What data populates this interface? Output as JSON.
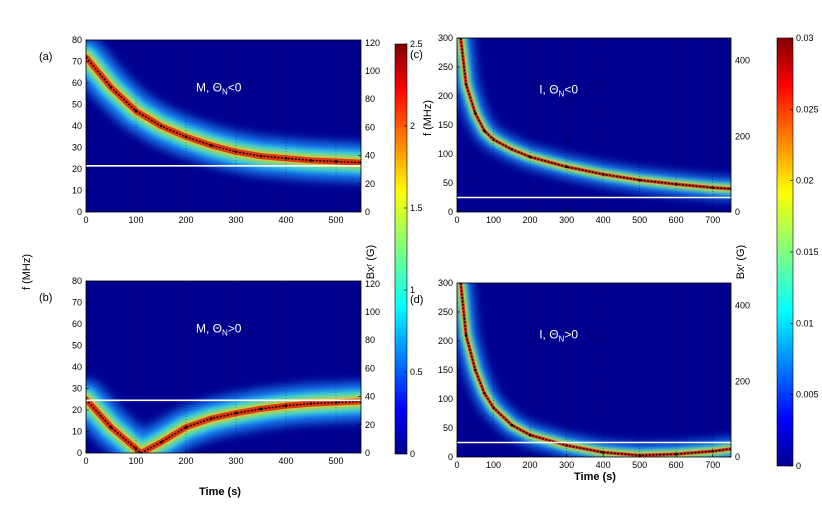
{
  "chart_data": [
    {
      "type": "heatmap",
      "panel_label": "(a)",
      "annotation": "M, ΘN<0",
      "x": [
        0,
        50,
        100,
        150,
        200,
        250,
        300,
        350,
        400,
        450,
        500,
        550
      ],
      "ridge_f": [
        72,
        58,
        47,
        40,
        35,
        31,
        28,
        26,
        25,
        24,
        23.5,
        23
      ],
      "xlim": [
        0,
        550
      ],
      "ylim": [
        0,
        80
      ],
      "right_ylim": [
        0,
        122
      ],
      "xticks": [
        0,
        100,
        200,
        300,
        400,
        500
      ],
      "yticks": [
        0,
        10,
        20,
        30,
        40,
        50,
        60,
        70,
        80
      ],
      "right_yticks": [
        0,
        20,
        40,
        60,
        80,
        100,
        120
      ],
      "ref_line_f": 21.5,
      "colorbar": {
        "min": 0,
        "max": 2.5,
        "ticks": [
          0,
          0.5,
          1,
          1.5,
          2,
          2.5
        ]
      }
    },
    {
      "type": "heatmap",
      "panel_label": "(b)",
      "annotation": "M, ΘN>0",
      "x": [
        0,
        50,
        100,
        110,
        150,
        200,
        250,
        300,
        350,
        400,
        450,
        500,
        550
      ],
      "ridge_f": [
        25,
        12,
        2,
        0,
        5,
        12,
        16,
        18.5,
        20.5,
        22,
        23,
        23.5,
        24
      ],
      "xlim": [
        0,
        550
      ],
      "ylim": [
        0,
        80
      ],
      "right_ylim": [
        0,
        122
      ],
      "xticks": [
        0,
        100,
        200,
        300,
        400,
        500
      ],
      "yticks": [
        0,
        10,
        20,
        30,
        40,
        50,
        60,
        70,
        80
      ],
      "right_yticks": [
        0,
        20,
        40,
        60,
        80,
        100,
        120
      ],
      "ref_line_f": 24.5,
      "colorbar": {
        "min": 0,
        "max": 2.5,
        "ticks": [
          0,
          0.5,
          1,
          1.5,
          2,
          2.5
        ]
      }
    },
    {
      "type": "heatmap",
      "panel_label": "(c)",
      "annotation": "I, ΘN<0",
      "x": [
        10,
        25,
        50,
        75,
        100,
        150,
        200,
        300,
        400,
        500,
        600,
        700,
        750
      ],
      "ridge_f": [
        300,
        220,
        170,
        140,
        125,
        108,
        95,
        78,
        65,
        55,
        48,
        42,
        40
      ],
      "xlim": [
        0,
        750
      ],
      "ylim": [
        0,
        300
      ],
      "right_ylim": [
        0,
        460
      ],
      "xticks": [
        0,
        100,
        200,
        300,
        400,
        500,
        600,
        700
      ],
      "yticks": [
        0,
        50,
        100,
        150,
        200,
        250,
        300
      ],
      "right_yticks": [
        0,
        200,
        400
      ],
      "ref_line_f": 25,
      "colorbar": {
        "min": 0,
        "max": 0.03,
        "ticks": [
          0,
          0.005,
          0.01,
          0.015,
          0.02,
          0.025,
          0.03
        ]
      }
    },
    {
      "type": "heatmap",
      "panel_label": "(d)",
      "annotation": "I, ΘN>0",
      "x": [
        10,
        25,
        50,
        75,
        100,
        150,
        200,
        300,
        400,
        500,
        600,
        700,
        750
      ],
      "ridge_f": [
        300,
        210,
        150,
        110,
        85,
        55,
        38,
        20,
        8,
        3,
        5,
        10,
        14
      ],
      "xlim": [
        0,
        750
      ],
      "ylim": [
        0,
        300
      ],
      "right_ylim": [
        0,
        460
      ],
      "xticks": [
        0,
        100,
        200,
        300,
        400,
        500,
        600,
        700
      ],
      "yticks": [
        0,
        50,
        100,
        150,
        200,
        250,
        300
      ],
      "right_yticks": [
        0,
        200,
        400
      ],
      "ref_line_f": 25,
      "colorbar": {
        "min": 0,
        "max": 0.03,
        "ticks": [
          0,
          0.005,
          0.01,
          0.015,
          0.02,
          0.025,
          0.03
        ]
      }
    }
  ],
  "labels": {
    "ylabel_main": "f (MHz)",
    "ylabel_c": "f (MHz)",
    "xlabel_bottom_left": "Time (s)",
    "xlabel_bottom_right": "Time (s)",
    "right_label_left": "Bxʳ (G)",
    "right_label_right": "Bxʳ (G)"
  },
  "colors": {
    "background": "#00008f",
    "ref_line": "#ffffff",
    "ridge": "#000000",
    "annotation": "#ffffff"
  }
}
